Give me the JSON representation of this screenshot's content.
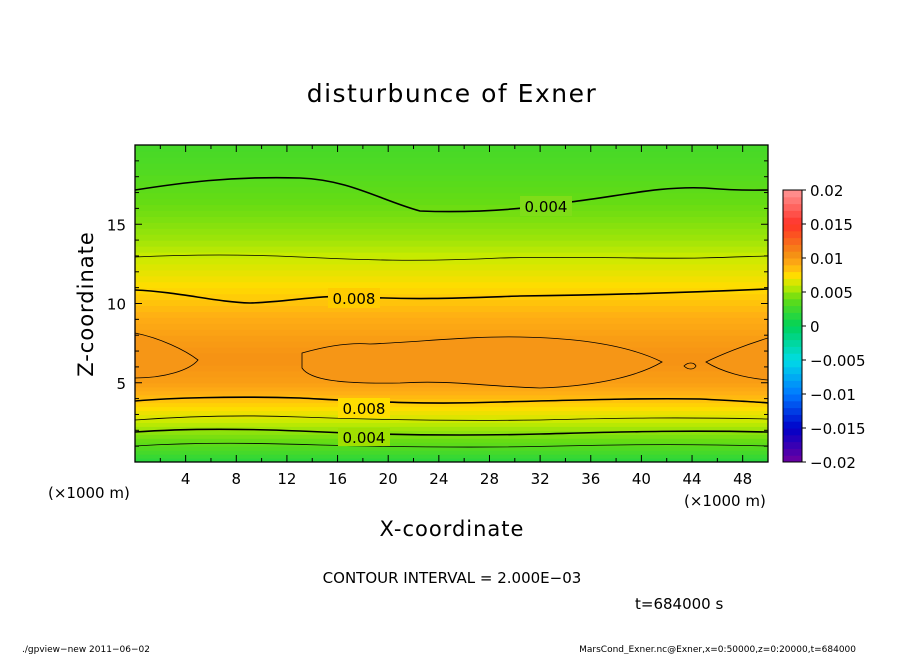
{
  "chart_data": {
    "type": "heatmap",
    "title": "disturbunce of Exner",
    "xlabel": "X-coordinate",
    "ylabel": "Z-coordinate",
    "x_unit_left": "(×1000 m)",
    "x_unit_right": "(×1000 m)",
    "xlim": [
      0,
      50
    ],
    "ylim": [
      0,
      20
    ],
    "xticks": [
      4,
      8,
      12,
      16,
      20,
      24,
      28,
      32,
      36,
      40,
      44,
      48
    ],
    "xtick_labels": [
      "4",
      "8",
      "12",
      "16",
      "20",
      "24",
      "28",
      "32",
      "36",
      "40",
      "44",
      "48"
    ],
    "yticks": [
      5,
      10,
      15
    ],
    "ytick_labels": [
      "5",
      "10",
      "15"
    ],
    "colorbar": {
      "min": -0.02,
      "max": 0.02,
      "levels": [
        -0.02,
        -0.015,
        -0.01,
        -0.005,
        0,
        0.005,
        0.01,
        0.015,
        0.02
      ],
      "labels": [
        "−0.02",
        "−0.015",
        "−0.01",
        "−0.005",
        "0",
        "0.005",
        "0.01",
        "0.015",
        "0.02"
      ]
    },
    "contour_interval_text": "CONTOUR INTERVAL = 2.000E−03",
    "contour_labels": [
      "0.004",
      "0.008",
      "0.008",
      "0.004"
    ],
    "z_profile": [
      {
        "z": 0.0,
        "value": 0.0015
      },
      {
        "z": 1.0,
        "value": 0.0035
      },
      {
        "z": 2.0,
        "value": 0.005
      },
      {
        "z": 3.0,
        "value": 0.0068
      },
      {
        "z": 4.0,
        "value": 0.0085
      },
      {
        "z": 5.0,
        "value": 0.0098
      },
      {
        "z": 6.5,
        "value": 0.0105
      },
      {
        "z": 8.0,
        "value": 0.0098
      },
      {
        "z": 9.5,
        "value": 0.0088
      },
      {
        "z": 11.0,
        "value": 0.0076
      },
      {
        "z": 12.5,
        "value": 0.0064
      },
      {
        "z": 14.0,
        "value": 0.0052
      },
      {
        "z": 15.5,
        "value": 0.0044
      },
      {
        "z": 17.0,
        "value": 0.0038
      },
      {
        "z": 18.5,
        "value": 0.0032
      },
      {
        "z": 20.0,
        "value": 0.0028
      }
    ]
  },
  "annotations": {
    "time": "t=684000 s",
    "footer_left": "./gpview−new   2011−06−02",
    "footer_right": "MarsCond_Exner.nc@Exner,x=0:50000,z=0:20000,t=684000"
  }
}
